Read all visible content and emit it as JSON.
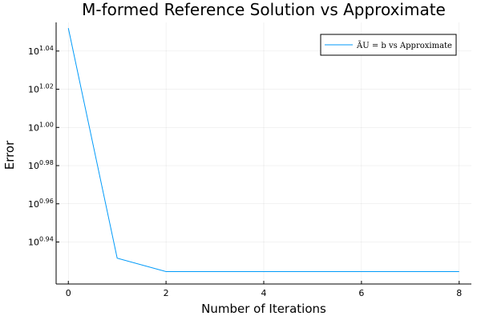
{
  "chart_data": {
    "type": "line",
    "title": "M-formed Reference Solution vs Approximate",
    "xlabel": "Number of Iterations",
    "ylabel": "Error",
    "scale_y": "log10",
    "x_ticks": [
      0,
      2,
      4,
      6,
      8
    ],
    "x_tick_labels": [
      "0",
      "2",
      "4",
      "6",
      "8"
    ],
    "y_ticks": [
      0.94,
      0.96,
      0.98,
      1.0,
      1.02,
      1.04
    ],
    "y_tick_base": "10",
    "y_tick_exponents": [
      "0.94",
      "0.96",
      "0.98",
      "1.00",
      "1.02",
      "1.04"
    ],
    "xlim": [
      -0.25,
      8.25
    ],
    "ylim_log10": [
      0.918,
      1.055
    ],
    "grid": true,
    "legend_position": "top-right",
    "series": [
      {
        "name": "ÃU = b vs Approximate",
        "color": "#009af9",
        "x": [
          0,
          1,
          2,
          3,
          4,
          5,
          6,
          7,
          8
        ],
        "log10_y": [
          1.052,
          0.9315,
          0.9245,
          0.9245,
          0.9245,
          0.9245,
          0.9245,
          0.9245,
          0.9245
        ]
      }
    ]
  }
}
